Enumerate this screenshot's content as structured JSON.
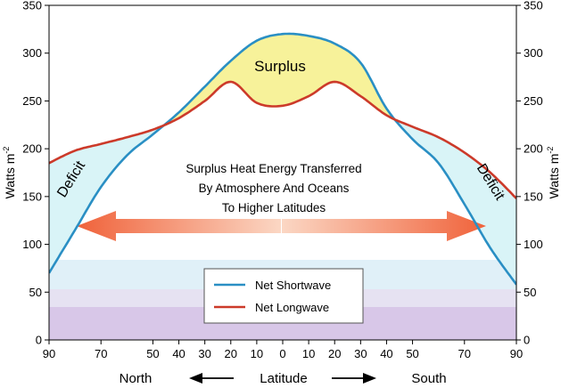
{
  "chart_data": {
    "type": "line",
    "ylabel_left": "Watts  m",
    "ylabel_right": "Watts  m",
    "ylabel_superscript": "-2",
    "ylim": [
      0,
      350
    ],
    "yticks": [
      0,
      50,
      100,
      150,
      200,
      250,
      300,
      350
    ],
    "xlim": [
      -90,
      90
    ],
    "xticks": [
      -90,
      -70,
      -50,
      -40,
      -30,
      -20,
      -10,
      0,
      10,
      20,
      30,
      40,
      50,
      70,
      90
    ],
    "xtick_labels": [
      "90",
      "70",
      "50",
      "40",
      "30",
      "20",
      "10",
      "0",
      "10",
      "20",
      "30",
      "40",
      "50",
      "70",
      "90"
    ],
    "xlabel": "Latitude",
    "x_left_label": "North",
    "x_right_label": "South",
    "grid": false,
    "series": [
      {
        "name": "Net Shortwave",
        "color": "#2a8fc4",
        "x": [
          -90,
          -80,
          -70,
          -60,
          -50,
          -40,
          -30,
          -20,
          -10,
          0,
          10,
          20,
          30,
          40,
          50,
          60,
          70,
          80,
          90
        ],
        "y": [
          70,
          115,
          160,
          193,
          215,
          238,
          265,
          292,
          313,
          320,
          318,
          310,
          290,
          242,
          210,
          185,
          142,
          96,
          58
        ]
      },
      {
        "name": "Net Longwave",
        "color": "#cc3a2a",
        "x": [
          -90,
          -80,
          -70,
          -60,
          -50,
          -40,
          -30,
          -20,
          -10,
          0,
          10,
          20,
          30,
          40,
          50,
          60,
          70,
          80,
          90
        ],
        "y": [
          185,
          198,
          205,
          212,
          220,
          232,
          250,
          270,
          248,
          245,
          255,
          270,
          255,
          235,
          223,
          212,
          196,
          175,
          148
        ]
      }
    ],
    "annotations": {
      "surplus": "Surplus",
      "deficit_left": "Deficit",
      "deficit_right": "Deficit",
      "transfer_line1": "Surplus Heat Energy Transferred",
      "transfer_line2": "By Atmosphere And Oceans",
      "transfer_line3": "To Higher Latitudes"
    },
    "legend_position": "bottom-center",
    "colors": {
      "surplus_fill": "#f7f29a",
      "deficit_fill": "#d9f4f7",
      "band_bottom": "#d8c7e8",
      "band_mid": "#e6e2f2",
      "band_top": "#e0f0f8",
      "arrow": "#f07a4a"
    }
  }
}
